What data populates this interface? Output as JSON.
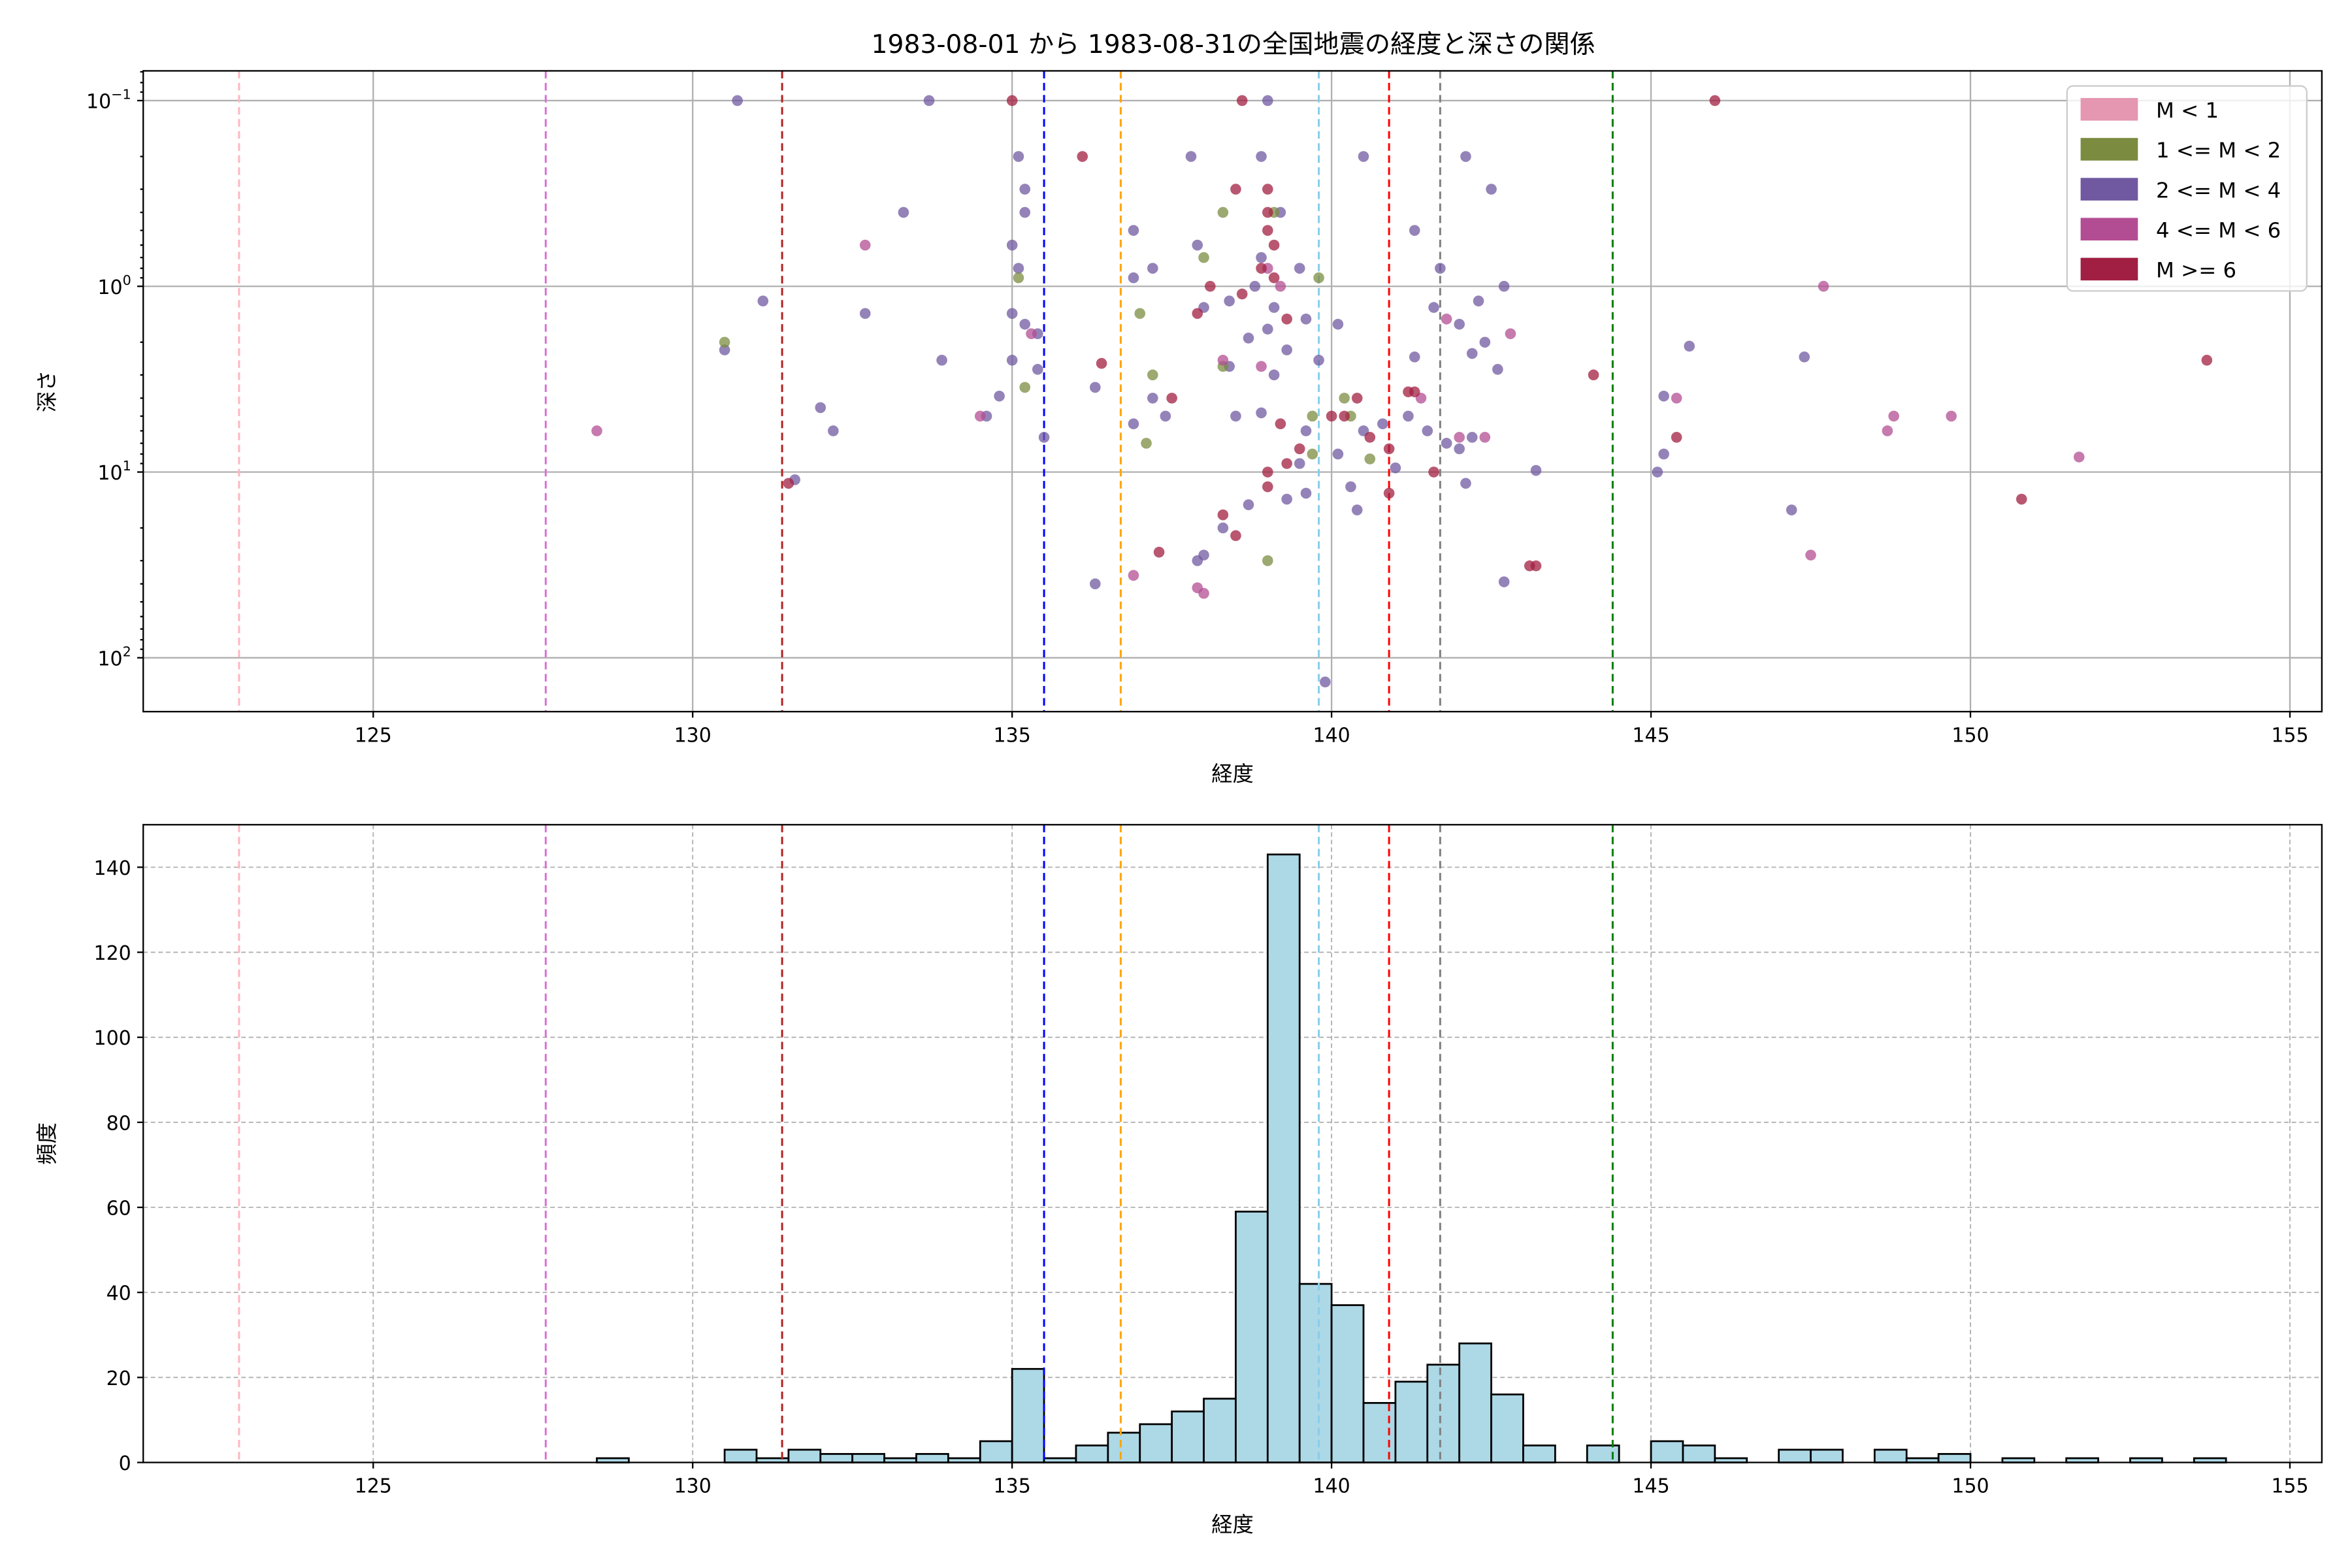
{
  "title": "1983-08-01 から 1983-08-31の全国地震の経度と深さの関係",
  "chart_data": [
    {
      "type": "scatter",
      "xlabel": "経度",
      "ylabel": "深さ",
      "xlim": [
        121.4,
        155.5
      ],
      "ylim_log10": [
        2.29,
        -1.16
      ],
      "y_scale": "log",
      "y_inverted": true,
      "xticks": [
        125,
        130,
        135,
        140,
        145,
        150,
        155
      ],
      "yticks": [
        {
          "exp": -1,
          "label": "10",
          "sup": "−1"
        },
        {
          "exp": 0,
          "label": "10",
          "sup": "0"
        },
        {
          "exp": 1,
          "label": "10",
          "sup": "1"
        },
        {
          "exp": 2,
          "label": "10",
          "sup": "2"
        }
      ],
      "grid": true,
      "legend_position": "top-right",
      "legend": [
        {
          "label": "M < 1",
          "color": "#e596b0"
        },
        {
          "label": "1 <= M < 2",
          "color": "#7b8c41"
        },
        {
          "label": "2 <= M < 4",
          "color": "#7059a0"
        },
        {
          "label": "4 <= M < 6",
          "color": "#b34d93"
        },
        {
          "label": "M >= 6",
          "color": "#a11f42"
        }
      ],
      "points": [
        [
          130.7,
          0.1,
          2
        ],
        [
          133.7,
          0.1,
          2
        ],
        [
          139.0,
          0.1,
          2
        ],
        [
          135.1,
          0.2,
          2
        ],
        [
          137.8,
          0.2,
          2
        ],
        [
          138.9,
          0.2,
          2
        ],
        [
          140.5,
          0.2,
          2
        ],
        [
          142.1,
          0.2,
          2
        ],
        [
          135.2,
          0.3,
          2
        ],
        [
          142.5,
          0.3,
          2
        ],
        [
          133.3,
          0.4,
          2
        ],
        [
          135.2,
          0.4,
          2
        ],
        [
          139.2,
          0.4,
          2
        ],
        [
          136.9,
          0.5,
          2
        ],
        [
          135.0,
          0.6,
          2
        ],
        [
          137.9,
          0.6,
          2
        ],
        [
          141.3,
          0.5,
          2
        ],
        [
          135.1,
          0.8,
          2
        ],
        [
          137.2,
          0.8,
          2
        ],
        [
          136.9,
          0.9,
          2
        ],
        [
          141.7,
          0.8,
          2
        ],
        [
          138.9,
          0.7,
          2
        ],
        [
          139.5,
          0.8,
          2
        ],
        [
          142.7,
          1.0,
          2
        ],
        [
          131.1,
          1.2,
          2
        ],
        [
          132.7,
          1.4,
          2
        ],
        [
          135.0,
          1.4,
          2
        ],
        [
          135.2,
          1.6,
          2
        ],
        [
          138.0,
          1.3,
          2
        ],
        [
          138.4,
          1.2,
          2
        ],
        [
          139.1,
          1.3,
          2
        ],
        [
          142.3,
          1.2,
          2
        ],
        [
          141.6,
          1.3,
          2
        ],
        [
          142.0,
          1.6,
          2
        ],
        [
          135.4,
          1.8,
          2
        ],
        [
          140.1,
          1.6,
          2
        ],
        [
          139.6,
          1.5,
          2
        ],
        [
          138.7,
          1.9,
          2
        ],
        [
          139.0,
          1.7,
          2
        ],
        [
          142.4,
          2.0,
          2
        ],
        [
          130.5,
          2.2,
          2
        ],
        [
          133.9,
          2.5,
          2
        ],
        [
          135.0,
          2.5,
          2
        ],
        [
          135.4,
          2.8,
          2
        ],
        [
          136.3,
          3.5,
          2
        ],
        [
          138.4,
          2.7,
          2
        ],
        [
          141.3,
          2.4,
          2
        ],
        [
          142.2,
          2.3,
          2
        ],
        [
          142.6,
          2.8,
          2
        ],
        [
          147.4,
          2.4,
          2
        ],
        [
          145.6,
          2.1,
          2
        ],
        [
          134.8,
          3.9,
          2
        ],
        [
          134.6,
          5.0,
          2
        ],
        [
          132.0,
          4.5,
          2
        ],
        [
          132.2,
          6.0,
          2
        ],
        [
          135.5,
          6.5,
          2
        ],
        [
          137.2,
          4.0,
          2
        ],
        [
          137.4,
          5.0,
          2
        ],
        [
          136.9,
          5.5,
          2
        ],
        [
          138.5,
          5.0,
          2
        ],
        [
          138.9,
          4.8,
          2
        ],
        [
          139.6,
          6.0,
          2
        ],
        [
          140.1,
          8.0,
          2
        ],
        [
          140.5,
          6.0,
          2
        ],
        [
          141.2,
          5.0,
          2
        ],
        [
          141.8,
          7.0,
          2
        ],
        [
          142.2,
          6.5,
          2
        ],
        [
          143.2,
          9.8,
          2
        ],
        [
          145.2,
          3.9,
          2
        ],
        [
          145.2,
          8.0,
          2
        ],
        [
          145.1,
          10.0,
          2
        ],
        [
          131.6,
          11.0,
          2
        ],
        [
          138.7,
          15.0,
          2
        ],
        [
          139.3,
          14.0,
          2
        ],
        [
          139.6,
          13.0,
          2
        ],
        [
          140.4,
          16.0,
          2
        ],
        [
          140.3,
          12.0,
          2
        ],
        [
          142.1,
          11.5,
          2
        ],
        [
          138.3,
          20.0,
          2
        ],
        [
          138.0,
          28.0,
          2
        ],
        [
          136.3,
          40.0,
          2
        ],
        [
          142.7,
          39.0,
          2
        ],
        [
          147.2,
          16.0,
          2
        ],
        [
          139.9,
          135.0,
          2
        ],
        [
          137.9,
          30.0,
          2
        ],
        [
          139.5,
          9.0,
          2
        ],
        [
          141.0,
          9.5,
          2
        ],
        [
          142.0,
          7.5,
          2
        ],
        [
          140.8,
          5.5,
          2
        ],
        [
          139.1,
          3.0,
          2
        ],
        [
          139.3,
          2.2,
          2
        ],
        [
          138.8,
          1.0,
          2
        ],
        [
          139.8,
          2.5,
          2
        ],
        [
          141.5,
          6.0,
          2
        ],
        [
          130.5,
          2.0,
          1
        ],
        [
          135.1,
          0.9,
          1
        ],
        [
          135.2,
          3.5,
          1
        ],
        [
          138.3,
          0.4,
          1
        ],
        [
          137.0,
          1.4,
          1
        ],
        [
          137.2,
          3.0,
          1
        ],
        [
          137.1,
          7.0,
          1
        ],
        [
          138.0,
          0.7,
          1
        ],
        [
          139.0,
          30,
          1
        ],
        [
          140.2,
          4.0,
          1
        ],
        [
          139.8,
          0.9,
          1
        ],
        [
          138.3,
          2.7,
          1
        ],
        [
          139.7,
          8.0,
          1
        ],
        [
          140.3,
          5.0,
          1
        ],
        [
          140.6,
          8.5,
          1
        ],
        [
          139.7,
          5.0,
          1
        ],
        [
          139.1,
          0.4,
          1
        ],
        [
          128.5,
          6.0,
          3
        ],
        [
          132.7,
          0.6,
          3
        ],
        [
          134.5,
          5.0,
          3
        ],
        [
          135.3,
          1.8,
          3
        ],
        [
          138.3,
          2.5,
          3
        ],
        [
          138.9,
          2.7,
          3
        ],
        [
          138.0,
          45,
          3
        ],
        [
          141.8,
          1.5,
          3
        ],
        [
          142.8,
          1.8,
          3
        ],
        [
          142.4,
          6.5,
          3
        ],
        [
          142.0,
          6.5,
          3
        ],
        [
          141.4,
          4.0,
          3
        ],
        [
          147.7,
          1.0,
          3
        ],
        [
          148.7,
          6.0,
          3
        ],
        [
          148.8,
          5.0,
          3
        ],
        [
          149.7,
          5.0,
          3
        ],
        [
          151.7,
          8.3,
          3
        ],
        [
          147.5,
          28,
          3
        ],
        [
          145.4,
          4.0,
          3
        ],
        [
          139.2,
          1.0,
          3
        ],
        [
          137.9,
          42,
          3
        ],
        [
          136.9,
          36,
          3
        ],
        [
          139.0,
          0.8,
          3
        ],
        [
          135.0,
          0.1,
          4
        ],
        [
          138.6,
          0.1,
          4
        ],
        [
          146.0,
          0.1,
          4
        ],
        [
          136.1,
          0.2,
          4
        ],
        [
          138.5,
          0.3,
          4
        ],
        [
          139.0,
          0.3,
          4
        ],
        [
          139.0,
          0.4,
          4
        ],
        [
          139.0,
          0.5,
          4
        ],
        [
          139.1,
          0.6,
          4
        ],
        [
          138.9,
          0.8,
          4
        ],
        [
          138.1,
          1.0,
          4
        ],
        [
          138.6,
          1.1,
          4
        ],
        [
          137.9,
          1.4,
          4
        ],
        [
          136.4,
          2.6,
          4
        ],
        [
          137.5,
          4.0,
          4
        ],
        [
          139.3,
          1.5,
          4
        ],
        [
          140.4,
          4.0,
          4
        ],
        [
          140.2,
          5.0,
          4
        ],
        [
          140.6,
          6.5,
          4
        ],
        [
          141.3,
          3.7,
          4
        ],
        [
          141.2,
          3.7,
          4
        ],
        [
          140.9,
          7.5,
          4
        ],
        [
          140.9,
          13.0,
          4
        ],
        [
          139.0,
          10.0,
          4
        ],
        [
          139.0,
          12.0,
          4
        ],
        [
          139.5,
          7.5,
          4
        ],
        [
          139.2,
          5.5,
          4
        ],
        [
          131.5,
          11.5,
          4
        ],
        [
          138.3,
          17,
          4
        ],
        [
          138.5,
          22,
          4
        ],
        [
          137.3,
          27,
          4
        ],
        [
          143.1,
          32,
          4
        ],
        [
          143.2,
          32,
          4
        ],
        [
          144.1,
          3.0,
          4
        ],
        [
          145.4,
          6.5,
          4
        ],
        [
          150.8,
          14,
          4
        ],
        [
          153.7,
          2.5,
          4
        ],
        [
          140.0,
          5.0,
          4
        ],
        [
          139.3,
          9.0,
          4
        ],
        [
          141.6,
          10.0,
          4
        ],
        [
          139.1,
          0.9,
          4
        ]
      ],
      "vlines": [
        {
          "x": 122.9,
          "color": "#ffb6c1"
        },
        {
          "x": 127.7,
          "color": "#da70d6"
        },
        {
          "x": 131.4,
          "color": "#b22222"
        },
        {
          "x": 135.5,
          "color": "#0000ff"
        },
        {
          "x": 136.7,
          "color": "#ffa500"
        },
        {
          "x": 139.8,
          "color": "#87ceeb"
        },
        {
          "x": 140.9,
          "color": "#ff0000"
        },
        {
          "x": 141.7,
          "color": "#808080"
        },
        {
          "x": 144.4,
          "color": "#008000"
        }
      ]
    },
    {
      "type": "bar",
      "subtype": "histogram",
      "xlabel": "経度",
      "ylabel": "頻度",
      "xlim": [
        121.4,
        155.5
      ],
      "ylim": [
        0,
        150
      ],
      "xticks": [
        125,
        130,
        135,
        140,
        145,
        150,
        155
      ],
      "yticks": [
        0,
        20,
        40,
        60,
        80,
        100,
        120,
        140
      ],
      "grid": true,
      "bin_start": 128.5,
      "bin_width": 0.5,
      "counts": [
        1,
        0,
        0,
        0,
        3,
        1,
        3,
        2,
        2,
        1,
        2,
        1,
        5,
        22,
        1,
        4,
        7,
        9,
        12,
        15,
        59,
        143,
        42,
        37,
        14,
        19,
        23,
        28,
        16,
        4,
        0,
        4,
        0,
        5,
        4,
        1,
        0,
        3,
        3,
        0,
        3,
        1,
        2,
        0,
        1,
        0,
        1,
        0,
        1,
        0,
        1
      ],
      "bar_color": "#add8e6",
      "vlines": [
        {
          "x": 122.9,
          "color": "#ffb6c1"
        },
        {
          "x": 127.7,
          "color": "#da70d6"
        },
        {
          "x": 131.4,
          "color": "#b22222"
        },
        {
          "x": 135.5,
          "color": "#0000ff"
        },
        {
          "x": 136.7,
          "color": "#ffa500"
        },
        {
          "x": 139.8,
          "color": "#87ceeb"
        },
        {
          "x": 140.9,
          "color": "#ff0000"
        },
        {
          "x": 141.7,
          "color": "#808080"
        },
        {
          "x": 144.4,
          "color": "#008000"
        }
      ]
    }
  ]
}
